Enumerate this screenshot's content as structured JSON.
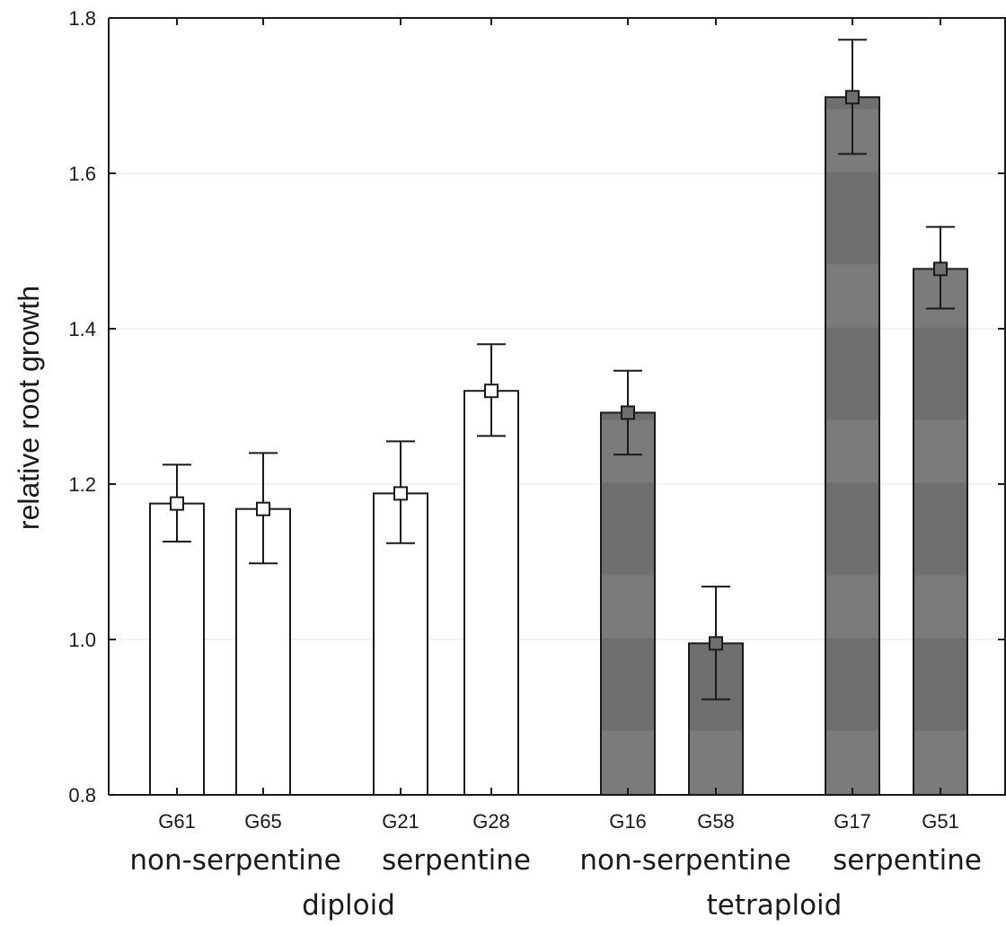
{
  "chart_data": {
    "type": "bar",
    "ylabel": "relative root growth",
    "xlabel": "",
    "ylim": [
      0.8,
      1.8
    ],
    "yticks": [
      "0.8",
      "1.0",
      "1.2",
      "1.4",
      "1.6",
      "1.8"
    ],
    "grid": true,
    "categories": [
      "G61",
      "G65",
      "G21",
      "G28",
      "G16",
      "G58",
      "G17",
      "G51"
    ],
    "values": [
      1.175,
      1.168,
      1.188,
      1.32,
      1.292,
      0.995,
      1.698,
      1.477
    ],
    "error_low": [
      1.126,
      1.098,
      1.124,
      1.262,
      1.238,
      0.923,
      1.625,
      1.426
    ],
    "error_high": [
      1.225,
      1.24,
      1.255,
      1.38,
      1.346,
      1.068,
      1.772,
      1.531
    ],
    "bar_fill": [
      "white",
      "white",
      "white",
      "white",
      "gray",
      "gray",
      "gray",
      "gray"
    ],
    "subgroups": [
      "non-serpentine",
      "serpentine",
      "non-serpentine",
      "serpentine"
    ],
    "groups": [
      "diploid",
      "tetraploid"
    ]
  },
  "colors": {
    "white_bar": "#ffffff",
    "gray_bar": "#6f6f6f",
    "gray_band": "#7b7b7b",
    "axis": "#1a1a1a",
    "grid": "#e6e6e6"
  }
}
